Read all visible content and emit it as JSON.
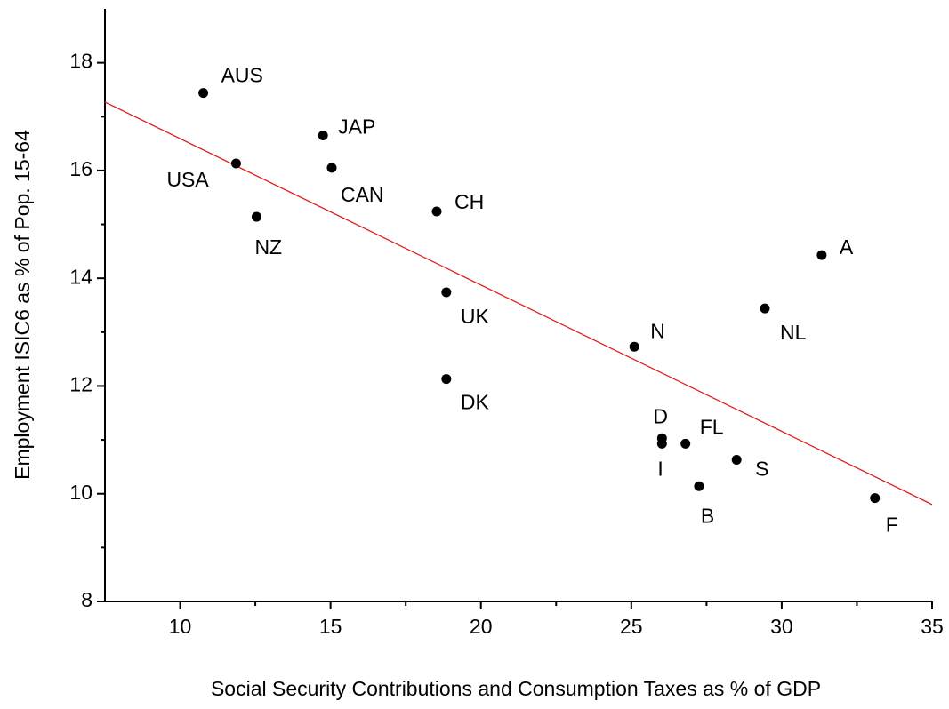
{
  "chart_data": {
    "type": "scatter",
    "x_label": "Social Security Contributions and Consumption Taxes as % of GDP",
    "y_label": "Employment ISIC6 as % of Pop. 15-64",
    "labels": [
      "AUS",
      "USA",
      "NZ",
      "JAP",
      "CAN",
      "CH",
      "UK",
      "DK",
      "N",
      "D",
      "I",
      "FL",
      "B",
      "S",
      "F",
      "NL",
      "A"
    ],
    "x": [
      10.77,
      11.86,
      12.54,
      14.75,
      15.04,
      18.53,
      18.85,
      18.85,
      25.1,
      26.02,
      26.02,
      26.8,
      27.25,
      28.5,
      33.1,
      29.44,
      31.33
    ],
    "values": [
      17.44,
      16.13,
      15.14,
      16.65,
      16.05,
      15.24,
      13.74,
      12.13,
      12.73,
      11.03,
      10.93,
      10.93,
      10.14,
      10.63,
      9.92,
      13.44,
      14.43
    ],
    "color": "#000000",
    "trend": {
      "x": [
        7.5,
        35
      ],
      "y": [
        17.27,
        9.8
      ],
      "color": "#e02020"
    },
    "xlim": [
      7.5,
      35
    ],
    "xticks": [
      10,
      15,
      20,
      25,
      30,
      35
    ],
    "ylim": [
      8,
      19
    ],
    "yticks": [
      8,
      10,
      12,
      14,
      16,
      18
    ]
  }
}
